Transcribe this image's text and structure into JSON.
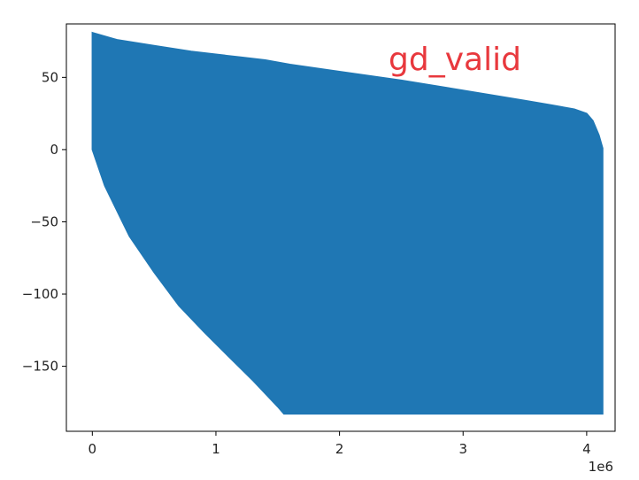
{
  "chart_data": {
    "type": "area",
    "title": "",
    "xlabel": "",
    "ylabel": "",
    "annotation": {
      "text": "gd_valid",
      "color": "#e8383d"
    },
    "x_offset_label": "1e6",
    "xlim": [
      -0.21,
      4.23
    ],
    "ylim": [
      -195,
      87
    ],
    "x_ticks": [
      0,
      1,
      2,
      3,
      4
    ],
    "x_tick_labels": [
      "0",
      "1",
      "2",
      "3",
      "4"
    ],
    "y_ticks": [
      50,
      0,
      -50,
      -100,
      -150
    ],
    "y_tick_labels": [
      "50",
      "0",
      "−50",
      "−100",
      "−150"
    ],
    "grid": false,
    "series": [
      {
        "color": "#1f77b4",
        "upper_envelope": {
          "x": [
            0.0,
            0.2,
            0.5,
            0.8,
            1.0,
            1.2,
            1.4,
            1.6,
            2.0,
            2.5,
            3.0,
            3.5,
            3.7,
            3.9,
            4.0,
            4.05,
            4.1,
            4.13
          ],
          "y": [
            81,
            76,
            72,
            68,
            66,
            64,
            62,
            59,
            54,
            48,
            41,
            34,
            31,
            28,
            25,
            20,
            10,
            1
          ]
        },
        "lower_envelope": {
          "x": [
            0.0,
            0.1,
            0.3,
            0.5,
            0.7,
            0.9,
            1.1,
            1.3,
            1.5,
            1.55,
            2.0,
            3.0,
            4.0,
            4.13
          ],
          "y": [
            0,
            -25,
            -60,
            -85,
            -108,
            -126,
            -143,
            -160,
            -178,
            -183,
            -183,
            -183,
            -183,
            -183
          ]
        }
      }
    ]
  }
}
